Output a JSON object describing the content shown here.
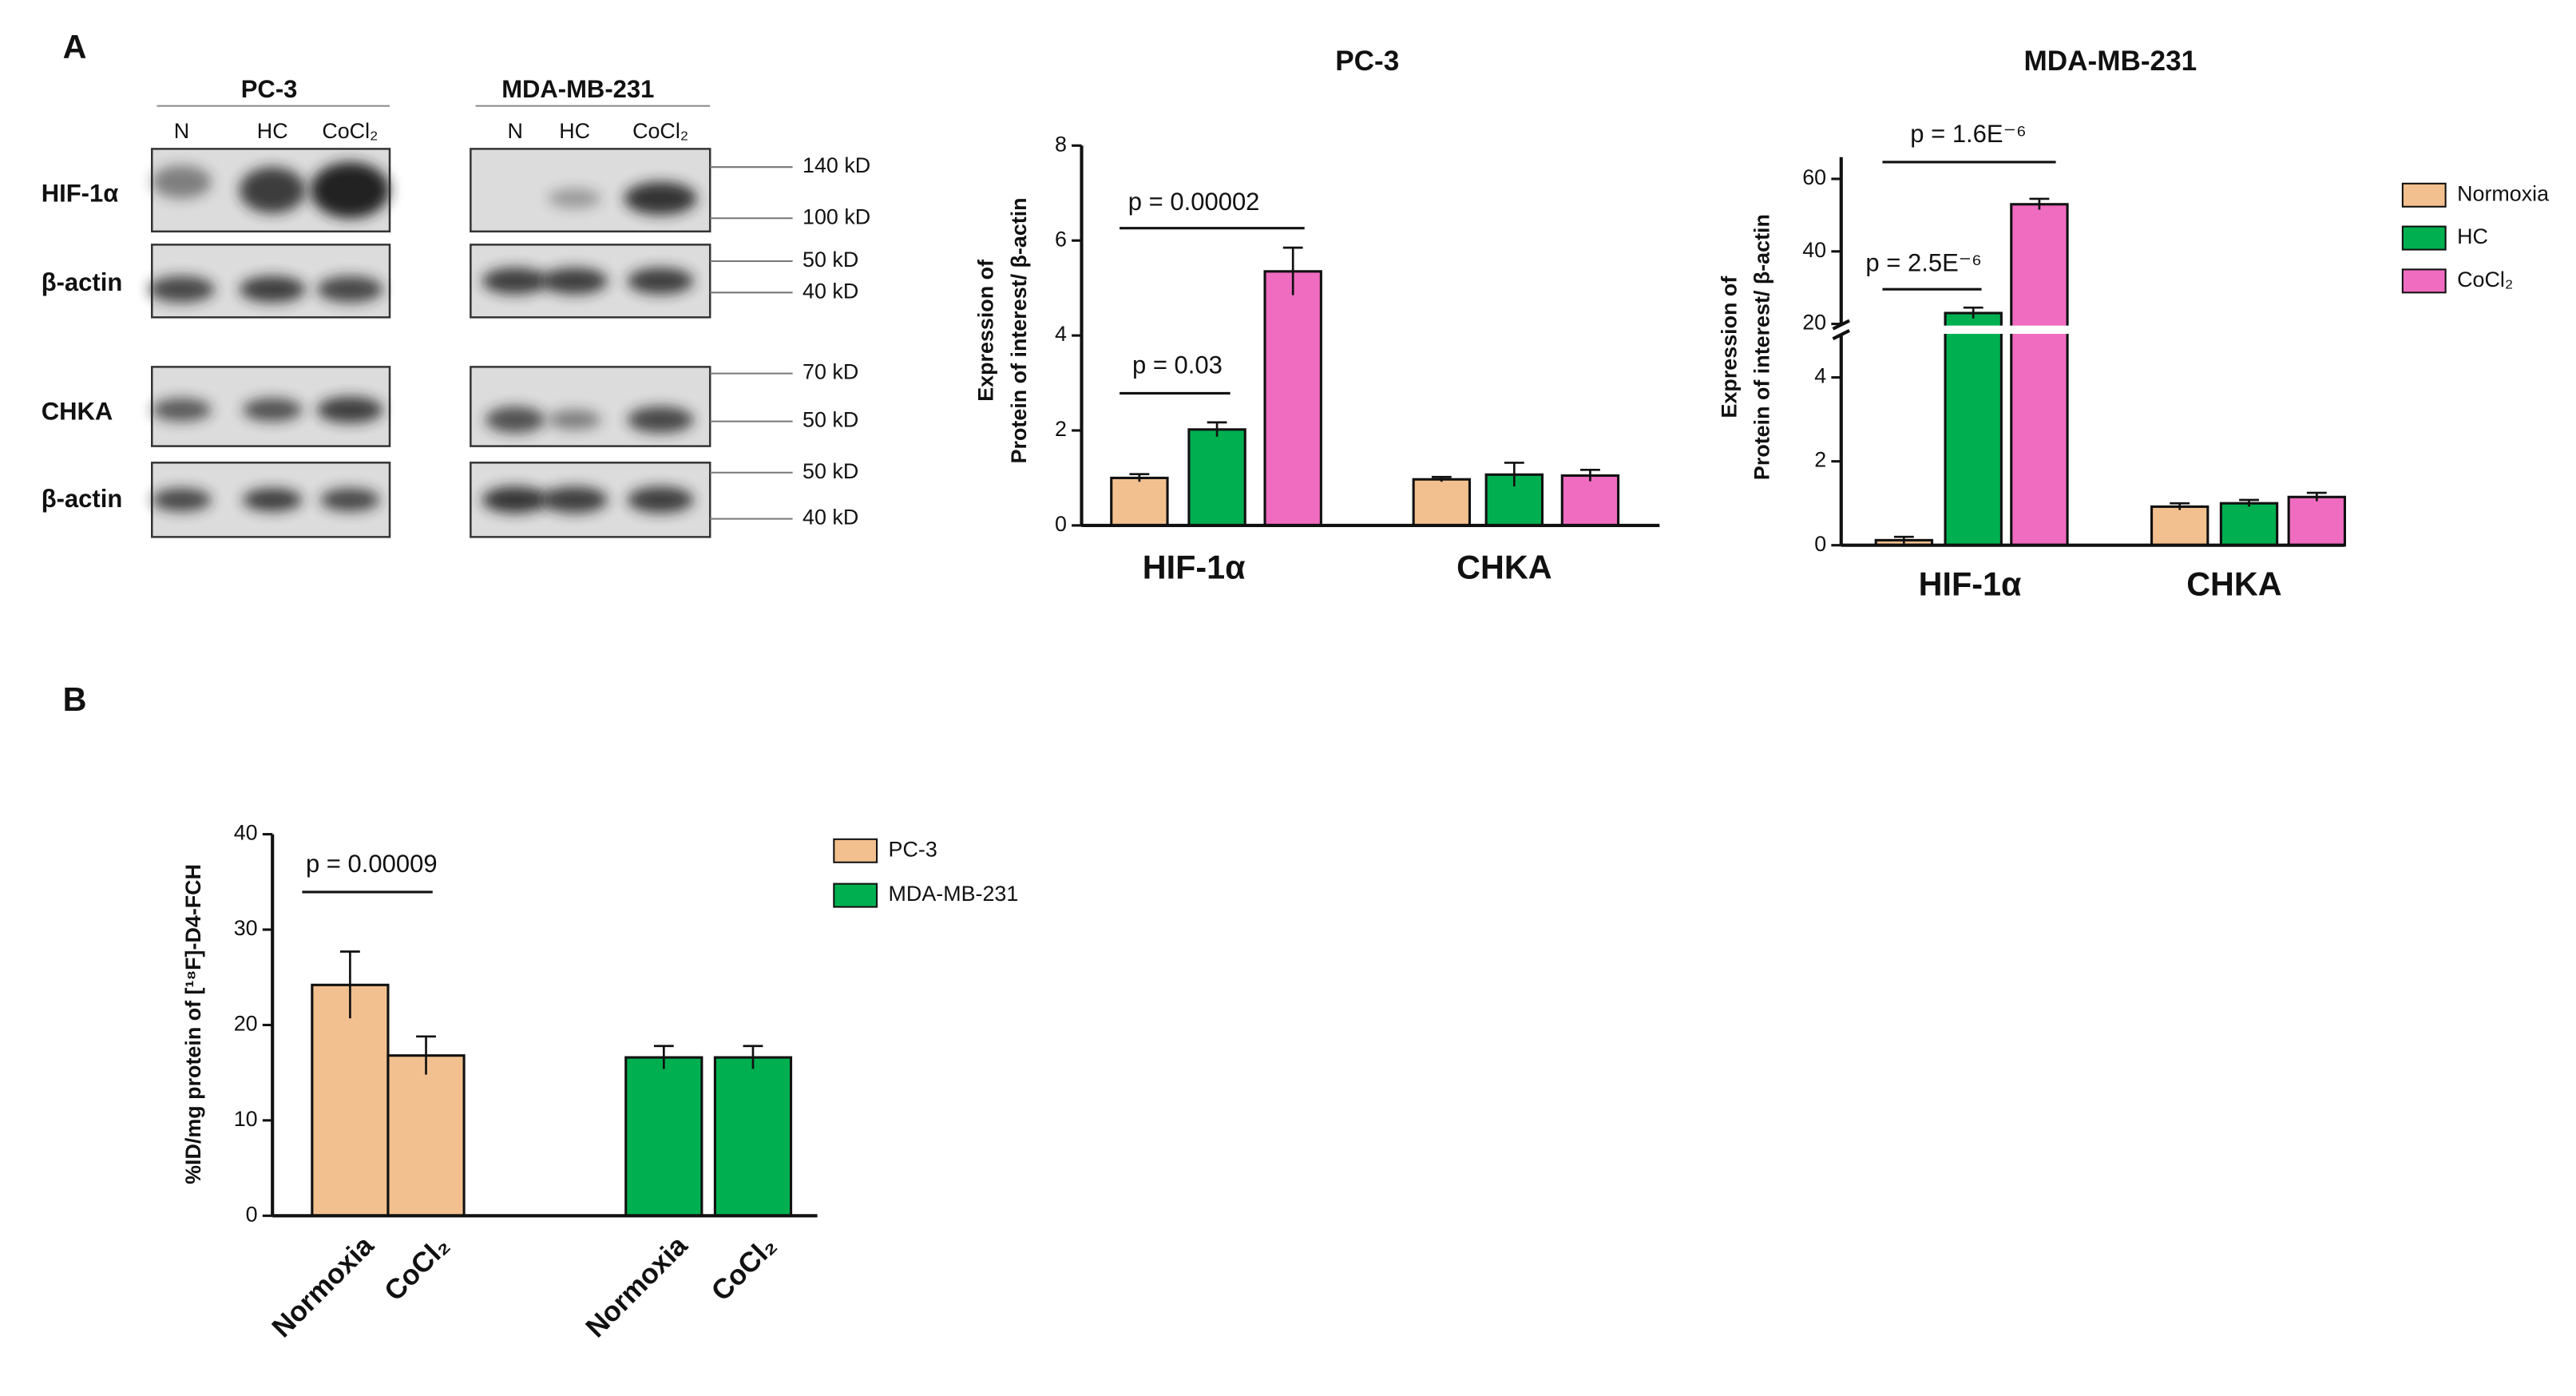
{
  "panel_labels": [
    "A",
    "B"
  ],
  "blots": {
    "groups": [
      {
        "name": "PC-3",
        "lanes": [
          "N",
          "HC",
          "CoCl₂"
        ]
      },
      {
        "name": "MDA-MB-231",
        "lanes": [
          "N",
          "HC",
          "CoCl₂"
        ]
      }
    ],
    "rows": [
      "HIF-1α",
      "β-actin",
      "CHKA",
      "β-actin"
    ],
    "markers": [
      "140 kD",
      "100 kD",
      "50 kD",
      "40 kD",
      "70 kD",
      "50 kD",
      "50 kD",
      "40 kD"
    ]
  },
  "chart_data": [
    {
      "type": "bar",
      "title": "PC-3",
      "ylabel": [
        "Expression of",
        "Protein of interest/ β-actin"
      ],
      "categories": [
        "HIF-1α",
        "CHKA"
      ],
      "series": [
        {
          "color": "#f2c08e",
          "values": [
            1.0,
            0.97
          ],
          "errors": [
            0.08,
            0.05
          ]
        },
        {
          "color": "#00b050",
          "values": [
            2.02,
            1.07
          ],
          "errors": [
            0.15,
            0.25
          ]
        },
        {
          "color": "#f06cc0",
          "values": [
            5.35,
            1.05
          ],
          "errors": [
            0.5,
            0.12
          ]
        }
      ],
      "ylim": [
        0,
        8
      ],
      "yticks": [
        0,
        2,
        4,
        6,
        8
      ],
      "legend": false,
      "annotations": [
        "p = 0.03",
        "p = 0.00002"
      ]
    },
    {
      "type": "bar",
      "title": "MDA-MB-231",
      "ylabel": [
        "Expression of",
        "Protein of interest/ β-actin"
      ],
      "categories": [
        "HIF-1α",
        "CHKA"
      ],
      "series": [
        {
          "name": "Normoxia",
          "color": "#f2c08e",
          "values": [
            0.12,
            0.92
          ],
          "errors": [
            0.08,
            0.08
          ]
        },
        {
          "name": "HC",
          "color": "#00b050",
          "values": [
            23,
            1.0
          ],
          "errors": [
            1.5,
            0.08
          ]
        },
        {
          "name": "CoCl₂",
          "color": "#f06cc0",
          "values": [
            53,
            1.15
          ],
          "errors": [
            1.5,
            0.1
          ]
        }
      ],
      "ylim": [
        0,
        66
      ],
      "axis_break": [
        5,
        20
      ],
      "yticks": [
        0,
        2,
        4,
        20,
        40,
        60
      ],
      "legend": "right",
      "annotations": [
        "p = 2.5E⁻⁶",
        "p = 1.6E⁻⁶"
      ]
    },
    {
      "type": "bar",
      "ylabel": [
        "%ID/mg protein of [¹⁸F]-D4-FCH"
      ],
      "categories": [
        "Normoxia",
        "CoCl₂",
        "Normoxia",
        "CoCl₂"
      ],
      "series": [
        {
          "name": "PC-3",
          "color": "#f2c08e",
          "values": [
            24.2,
            16.8,
            null,
            null
          ],
          "errors": [
            3.5,
            2.0,
            null,
            null
          ]
        },
        {
          "name": "MDA-MB-231",
          "color": "#00b050",
          "values": [
            null,
            null,
            16.6,
            16.6
          ],
          "errors": [
            null,
            null,
            1.2,
            1.2
          ]
        }
      ],
      "ylim": [
        0,
        40
      ],
      "yticks": [
        0,
        10,
        20,
        30,
        40
      ],
      "legend": "right",
      "annotations": [
        "p = 0.00009"
      ]
    }
  ]
}
